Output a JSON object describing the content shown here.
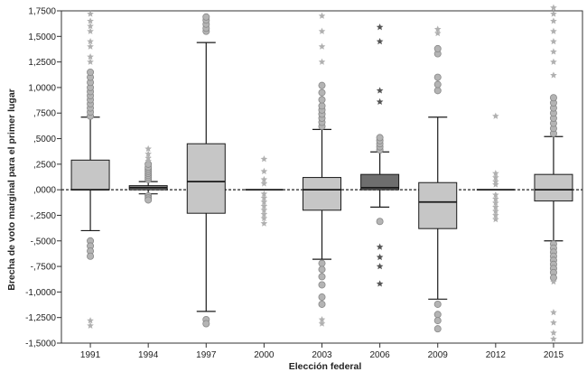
{
  "chart_data": {
    "type": "box",
    "xlabel": "Elección federal",
    "ylabel": "Brecha de voto marginal para el primer lugar",
    "ylim": [
      -1.5,
      1.75
    ],
    "y_ticks": [
      1.75,
      1.5,
      1.25,
      1.0,
      0.75,
      0.5,
      0.25,
      0.0,
      -0.25,
      -0.5,
      -0.75,
      -1.0,
      -1.25,
      -1.5
    ],
    "y_tick_labels": [
      "1,7500",
      "1,5000",
      "1,2500",
      "1,0000",
      ",7500",
      ",5000",
      ",2500",
      ",0000",
      "-,2500",
      "-,5000",
      "-,7500",
      "-1,0000",
      "-1,2500",
      "-1,5000"
    ],
    "reference_line": 0.0,
    "grid": false,
    "categories": [
      "1991",
      "1994",
      "1997",
      "2000",
      "2003",
      "2006",
      "2009",
      "2012",
      "2015"
    ],
    "boxes": [
      {
        "label": "1991",
        "q1": 0.0,
        "median": 0.0,
        "q3": 0.29,
        "whisker_low": -0.4,
        "whisker_high": 0.71,
        "fill": "#c6c6c6",
        "outliers": [
          0.72,
          0.76,
          0.8,
          0.84,
          0.88,
          0.92,
          0.96,
          1.0,
          1.05,
          1.1,
          1.15,
          -0.5,
          -0.55,
          -0.6,
          -0.65
        ],
        "extremes": [
          1.25,
          1.3,
          1.4,
          1.45,
          1.55,
          1.6,
          1.65,
          1.72,
          -1.28,
          -1.33
        ]
      },
      {
        "label": "1994",
        "q1": 0.0,
        "median": 0.02,
        "q3": 0.04,
        "whisker_low": -0.04,
        "whisker_high": 0.08,
        "fill": "#8a8a8a",
        "outliers": [
          0.1,
          0.12,
          0.14,
          0.16,
          0.18,
          0.2,
          0.22,
          0.25,
          -0.06,
          -0.08,
          -0.1
        ],
        "extremes": [
          0.28,
          0.31,
          0.35,
          0.4
        ]
      },
      {
        "label": "1997",
        "q1": -0.23,
        "median": 0.08,
        "q3": 0.45,
        "whisker_low": -1.19,
        "whisker_high": 1.44,
        "fill": "#c6c6c6",
        "outliers": [
          1.55,
          1.58,
          1.62,
          1.66,
          1.69,
          -1.27,
          -1.31
        ],
        "extremes": []
      },
      {
        "label": "2000",
        "q1": 0.0,
        "median": 0.0,
        "q3": 0.0,
        "whisker_low": -0.005,
        "whisker_high": 0.005,
        "fill": "#c6c6c6",
        "outliers": [],
        "extremes": [
          0.3,
          0.18,
          0.1,
          0.06,
          -0.04,
          -0.08,
          -0.12,
          -0.16,
          -0.2,
          -0.24,
          -0.28,
          -0.33
        ]
      },
      {
        "label": "2003",
        "q1": -0.2,
        "median": 0.0,
        "q3": 0.12,
        "whisker_low": -0.68,
        "whisker_high": 0.59,
        "fill": "#c6c6c6",
        "outliers": [
          0.62,
          0.66,
          0.7,
          0.74,
          0.78,
          0.82,
          0.88,
          0.95,
          1.02,
          -0.72,
          -0.78,
          -0.85,
          -0.93,
          -1.05,
          -1.12
        ],
        "extremes": [
          1.25,
          1.4,
          1.55,
          1.7,
          -1.27,
          -1.31
        ]
      },
      {
        "label": "2006",
        "q1": 0.0,
        "median": 0.02,
        "q3": 0.15,
        "whisker_low": -0.17,
        "whisker_high": 0.37,
        "fill": "#6e6e6e",
        "outliers": [
          0.39,
          0.42,
          0.45,
          0.48,
          0.51,
          -0.31
        ],
        "extremes": [
          1.59,
          1.45,
          0.97,
          0.86,
          -0.56,
          -0.66,
          -0.75,
          -0.92
        ]
      },
      {
        "label": "2009",
        "q1": -0.38,
        "median": -0.12,
        "q3": 0.07,
        "whisker_low": -1.07,
        "whisker_high": 0.71,
        "fill": "#c6c6c6",
        "outliers": [
          0.97,
          1.03,
          1.1,
          1.33,
          1.38,
          -1.12,
          -1.22,
          -1.28,
          -1.36
        ],
        "extremes": [
          1.57,
          1.53
        ]
      },
      {
        "label": "2012",
        "q1": 0.0,
        "median": 0.0,
        "q3": 0.0,
        "whisker_low": -0.005,
        "whisker_high": 0.005,
        "fill": "#c6c6c6",
        "outliers": [],
        "extremes": [
          0.72,
          0.16,
          0.12,
          0.08,
          0.05,
          -0.05,
          -0.09,
          -0.13,
          -0.17,
          -0.21,
          -0.25,
          -0.29
        ]
      },
      {
        "label": "2015",
        "q1": -0.11,
        "median": 0.0,
        "q3": 0.15,
        "whisker_low": -0.5,
        "whisker_high": 0.52,
        "fill": "#c6c6c6",
        "outliers": [
          0.55,
          0.6,
          0.65,
          0.7,
          0.75,
          0.8,
          0.85,
          0.9,
          -0.53,
          -0.57,
          -0.61,
          -0.65,
          -0.69,
          -0.73,
          -0.77,
          -0.81,
          -0.86
        ],
        "extremes": [
          1.12,
          1.25,
          1.35,
          1.45,
          1.55,
          1.65,
          1.72,
          1.78,
          -0.9,
          -1.2,
          -1.3,
          -1.4,
          -1.46
        ]
      }
    ],
    "colors": {
      "box_stroke": "#1a1a1a",
      "outlier_fill": "#b4b4b4",
      "outlier_stroke": "#888888",
      "extreme_fill": "#b0b0b0",
      "extreme_dark": "#555555"
    }
  }
}
